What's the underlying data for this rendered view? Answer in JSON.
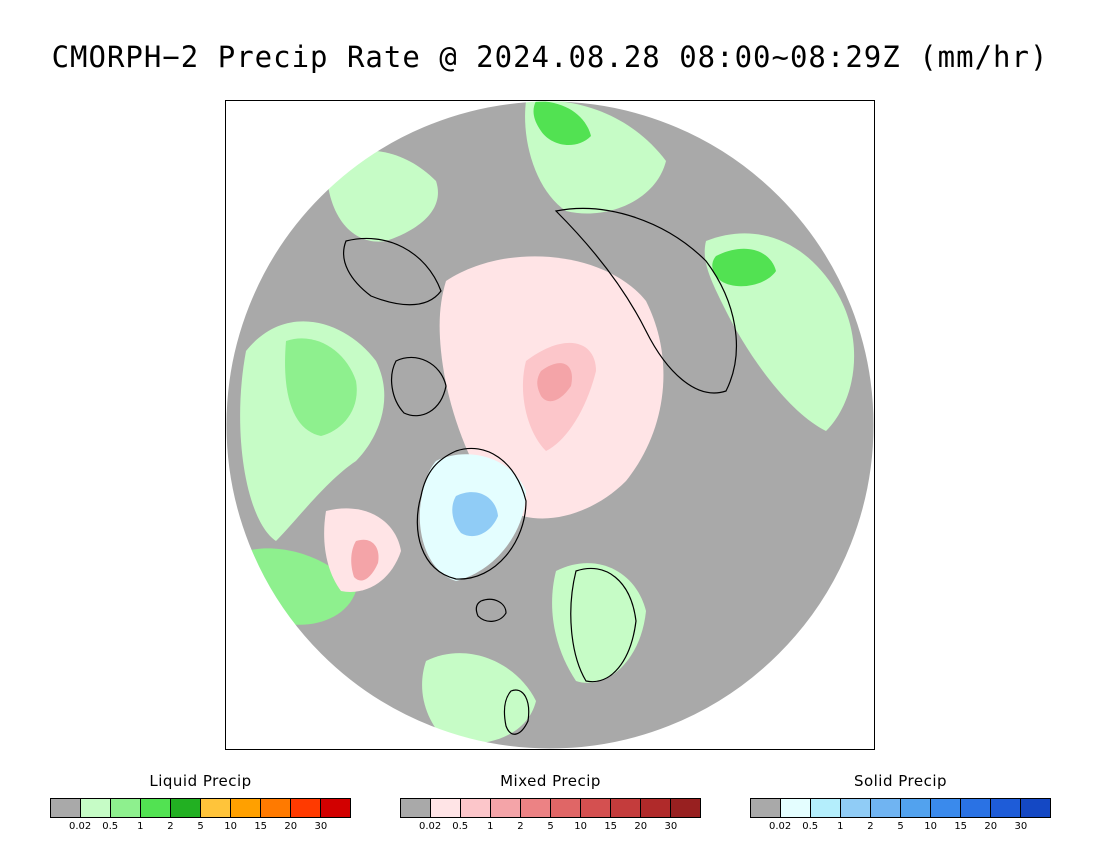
{
  "title": "CMORPH−2 Precip Rate @ 2024.08.28 08:00~08:29Z (mm/hr)",
  "map": {
    "projection": "north-polar-stereographic",
    "background_color": "#a9a9a9",
    "coastline_color": "#000000"
  },
  "legends": [
    {
      "title": "Liquid Precip",
      "colors": [
        "#a9a9a9",
        "#c6fcc6",
        "#8ef08e",
        "#52e252",
        "#22b022",
        "#ffc43a",
        "#ffa000",
        "#ff7a00",
        "#ff3a00",
        "#d20000"
      ],
      "ticks": [
        "0.02",
        "0.5",
        "1",
        "2",
        "5",
        "10",
        "15",
        "20",
        "30"
      ]
    },
    {
      "title": "Mixed Precip",
      "colors": [
        "#a9a9a9",
        "#ffe4e6",
        "#fcc6ca",
        "#f4a4a8",
        "#ec8284",
        "#e06666",
        "#d45050",
        "#c43c3c",
        "#b02a2a",
        "#982020"
      ],
      "ticks": [
        "0.02",
        "0.5",
        "1",
        "2",
        "5",
        "10",
        "15",
        "20",
        "30"
      ]
    },
    {
      "title": "Solid Precip",
      "colors": [
        "#a9a9a9",
        "#e4feff",
        "#b4eefc",
        "#90ccf6",
        "#70b4f2",
        "#52a2ee",
        "#3a8aec",
        "#2a72e4",
        "#1e5cd8",
        "#1448c4"
      ],
      "ticks": [
        "0.02",
        "0.5",
        "1",
        "2",
        "5",
        "10",
        "15",
        "20",
        "30"
      ]
    }
  ]
}
